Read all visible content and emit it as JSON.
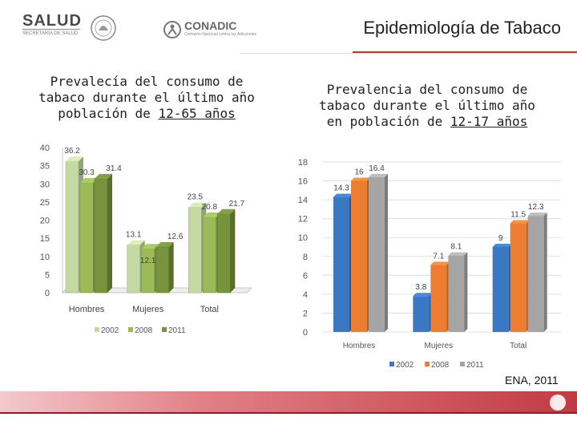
{
  "header": {
    "title": "Epidemiología de Tabaco",
    "logo_salud": "SALUD",
    "logo_salud_sub": "SECRETARÍA DE SALUD",
    "logo_conadic": "CONADIC",
    "logo_conadic_sub": "Comisión Nacional contra las Adicciones"
  },
  "colors": {
    "accent_red": "#c0392b",
    "footer_dark": "#8e1d27"
  },
  "footer": {
    "source": "ENA, 2011"
  },
  "left_chart": {
    "title_line1": "Prevalecía del consumo de",
    "title_line2": "tabaco durante el último año",
    "title_line3_prefix": "población de ",
    "title_line3_underlined": "12-65 años"
  },
  "right_chart": {
    "title_line1": "Prevalencia del consumo de",
    "title_line2": "tabaco durante el último año",
    "title_line3_prefix": "en población de ",
    "title_line3_underlined": "12-17 años"
  },
  "chart_data": [
    {
      "type": "bar",
      "title": "Prevalecía del consumo de tabaco durante el último año población de 12-65 años",
      "categories": [
        "Hombres",
        "Mujeres",
        "Total"
      ],
      "series": [
        {
          "name": "2002",
          "values": [
            36.2,
            13.1,
            23.5
          ],
          "color": "#c5d9a3"
        },
        {
          "name": "2008",
          "values": [
            30.3,
            12.1,
            20.8
          ],
          "color": "#9bbb59"
        },
        {
          "name": "2011",
          "values": [
            31.4,
            12.6,
            21.7
          ],
          "color": "#77933c"
        }
      ],
      "ylim": [
        0,
        40
      ],
      "yticks": [
        0,
        5,
        10,
        15,
        20,
        25,
        30,
        35,
        40
      ],
      "legend": "bottom"
    },
    {
      "type": "bar",
      "title": "Prevalencia del consumo de tabaco durante el último año en población de 12-17 años",
      "categories": [
        "Hombres",
        "Mujeres",
        "Total"
      ],
      "series": [
        {
          "name": "2002",
          "values": [
            14.3,
            3.8,
            9
          ],
          "color": "#3b78c4"
        },
        {
          "name": "2008",
          "values": [
            16,
            7.1,
            11.5
          ],
          "color": "#ed7d31"
        },
        {
          "name": "2011",
          "values": [
            16.4,
            8.1,
            12.3
          ],
          "color": "#a5a5a5"
        }
      ],
      "ylim": [
        0,
        18
      ],
      "yticks": [
        0,
        2,
        4,
        6,
        8,
        10,
        12,
        14,
        16,
        18
      ],
      "legend": "bottom"
    }
  ]
}
